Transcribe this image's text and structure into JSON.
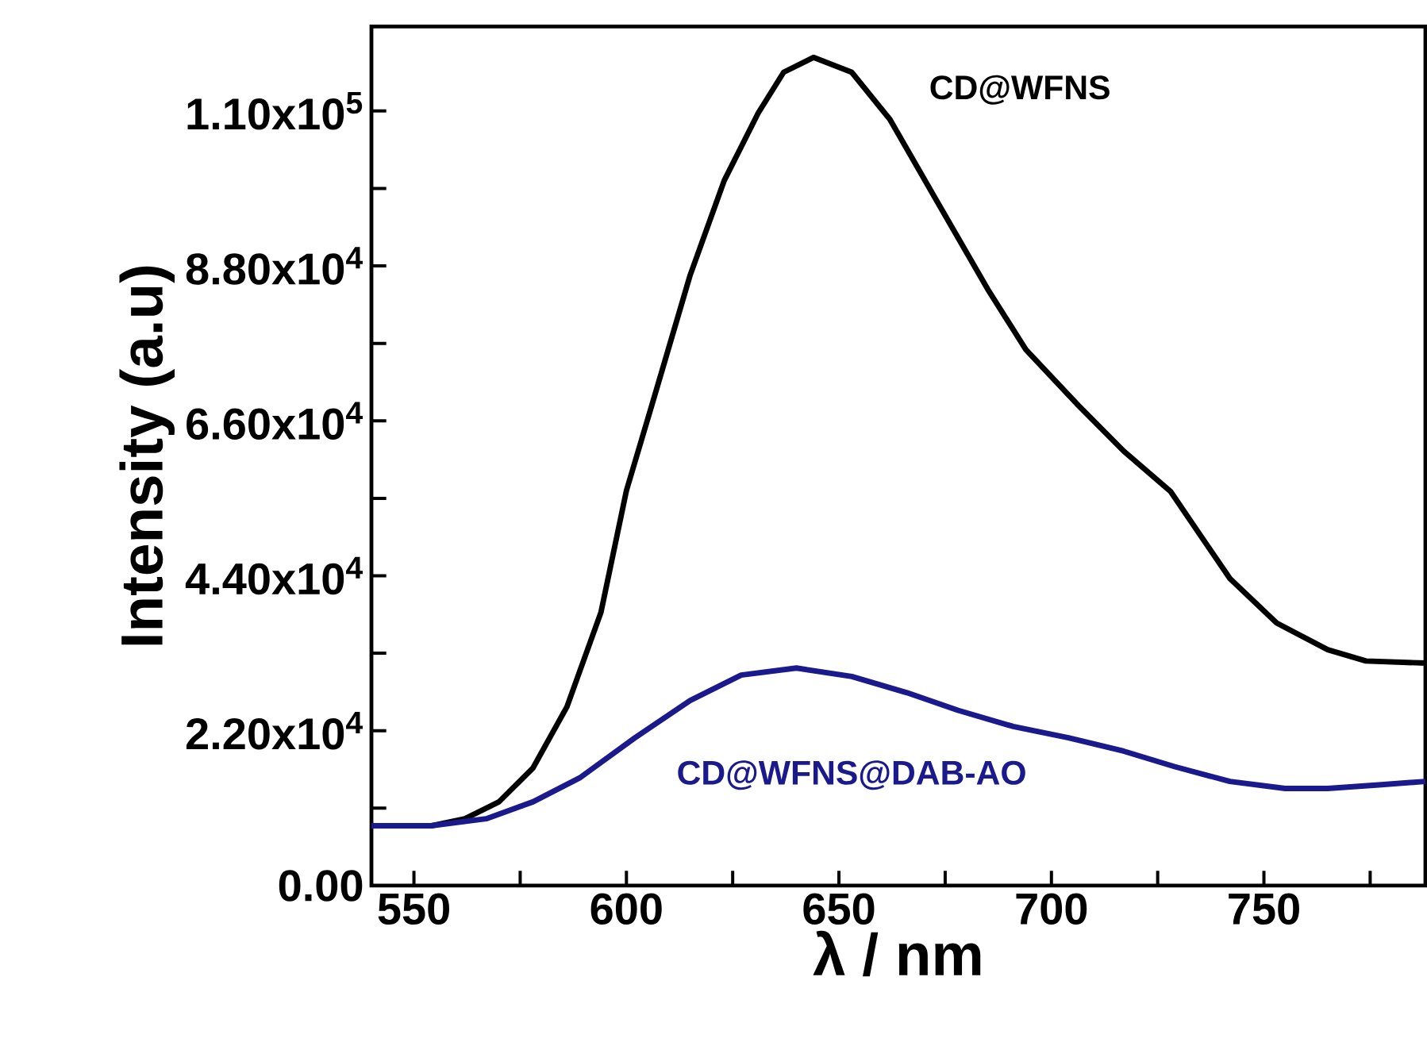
{
  "chart_data": {
    "type": "line",
    "xlabel": "λ / nm",
    "ylabel": "Intensity (a.u)",
    "xlim": [
      540,
      788
    ],
    "ylim": [
      0,
      122000
    ],
    "xticks": [
      550,
      600,
      650,
      700,
      750,
      {
        "value": 575,
        "label": null
      },
      {
        "value": 625,
        "label": null
      },
      {
        "value": 675,
        "label": null
      },
      {
        "value": 725,
        "label": null
      },
      {
        "value": 775,
        "label": null
      }
    ],
    "yticks": [
      {
        "value": 0,
        "label": "0.00"
      },
      {
        "value": 22000,
        "label": "2.20x10$^{4}$"
      },
      {
        "value": 44000,
        "label": "4.40x10$^{4}$"
      },
      {
        "value": 66000,
        "label": "6.60x10$^{4}$"
      },
      {
        "value": 88000,
        "label": "8.80x10$^{4}$"
      },
      {
        "value": 110000,
        "label": "1.10x10$^{5}$"
      },
      {
        "value": 11000,
        "label": null
      },
      {
        "value": 33000,
        "label": null
      },
      {
        "value": 55000,
        "label": null
      },
      {
        "value": 77000,
        "label": null
      },
      {
        "value": 99000,
        "label": null
      }
    ],
    "legend": false,
    "grid": false,
    "marker": "none",
    "line_style": "solid",
    "series": [
      {
        "name": "CD@WFNS",
        "color": "#000000",
        "x": [
          540,
          554,
          562,
          570,
          578,
          586,
          594,
          600,
          607,
          615,
          623,
          631,
          637,
          644,
          653,
          662,
          674,
          685,
          694,
          706,
          717,
          728,
          742,
          753,
          765,
          774,
          788
        ],
        "values": [
          8500,
          8500,
          9500,
          11900,
          16700,
          25400,
          38800,
          56100,
          70300,
          86700,
          100100,
          109700,
          115500,
          117600,
          115500,
          108800,
          96200,
          84700,
          76100,
          68400,
          61700,
          56000,
          43600,
          37300,
          33500,
          31900,
          31600
        ]
      },
      {
        "name": "CD@WFNS@DAB-AO",
        "color": "#1a1a8c",
        "x": [
          540,
          554,
          567,
          578,
          589,
          602,
          615,
          627,
          640,
          653,
          666,
          678,
          691,
          704,
          717,
          729,
          742,
          755,
          765,
          777,
          788
        ],
        "values": [
          8500,
          8500,
          9500,
          11900,
          15300,
          21000,
          26300,
          29900,
          30900,
          29700,
          27400,
          24900,
          22600,
          21000,
          19100,
          16900,
          14800,
          13800,
          13800,
          14300,
          14800
        ]
      }
    ]
  }
}
